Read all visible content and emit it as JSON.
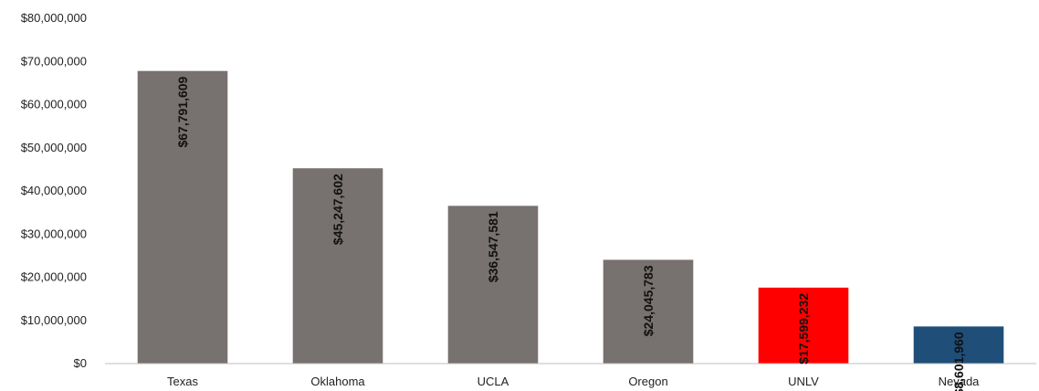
{
  "chart_data": {
    "type": "bar",
    "categories": [
      "Texas",
      "Oklahoma",
      "UCLA",
      "Oregon",
      "UNLV",
      "Nevada"
    ],
    "values": [
      67791609,
      45247602,
      36547581,
      24045783,
      17599232,
      8601960
    ],
    "data_labels": [
      "$67,791,609",
      "$45,247,602",
      "$36,547,581",
      "$24,045,783",
      "$17,599,232",
      "$8,601,960"
    ],
    "bar_colors": [
      "#77716f",
      "#77716f",
      "#77716f",
      "#77716f",
      "#ff0000",
      "#1f4e79"
    ],
    "y_ticks": [
      0,
      10000000,
      20000000,
      30000000,
      40000000,
      50000000,
      60000000,
      70000000,
      80000000
    ],
    "y_tick_labels": [
      "$0",
      "$10,000,000",
      "$20,000,000",
      "$30,000,000",
      "$40,000,000",
      "$50,000,000",
      "$60,000,000",
      "$70,000,000",
      "$80,000,000"
    ],
    "ylim": [
      0,
      80000000
    ],
    "title": "",
    "xlabel": "",
    "ylabel": "",
    "grid": false,
    "legend": "none"
  }
}
